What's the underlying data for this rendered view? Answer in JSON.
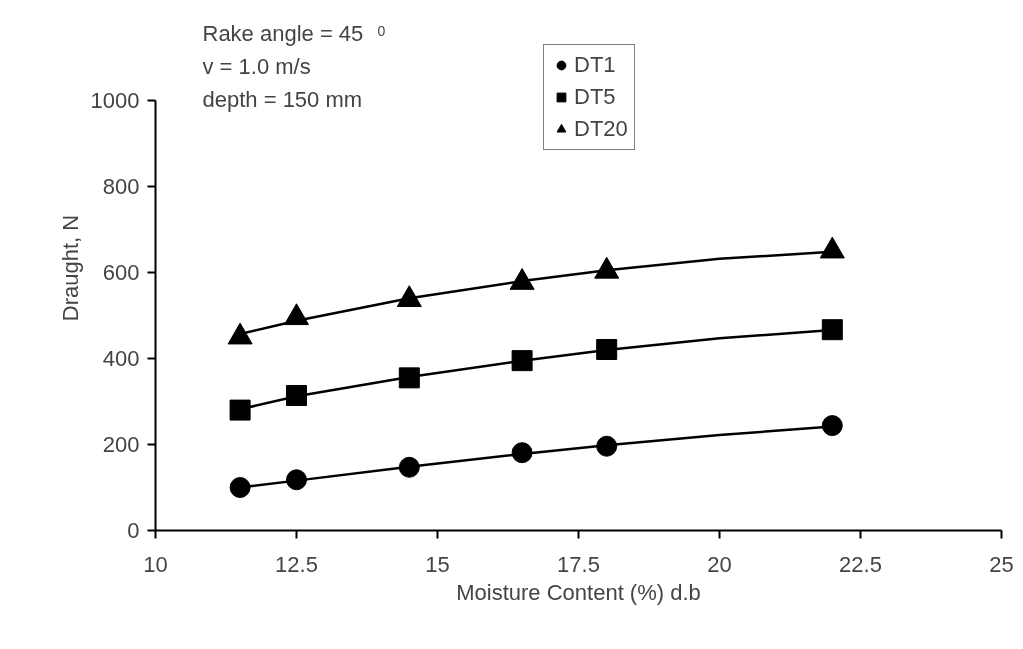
{
  "chart_data": {
    "type": "scatter",
    "xlabel": "Moisture Content (%) d.b",
    "ylabel": "Draught, N",
    "annotations": [
      "Rake angle = 45$^{0}$",
      "v = 1.0 m/s",
      "depth = 150 mm"
    ],
    "x": [
      11.5,
      12.5,
      14.5,
      16.5,
      18,
      22
    ],
    "xlim": [
      10,
      25
    ],
    "xticks": [
      10,
      12.5,
      15,
      17.5,
      20,
      22.5,
      25
    ],
    "ylim": [
      0,
      1000
    ],
    "yticks": [
      0,
      200,
      400,
      600,
      800,
      1000
    ],
    "grid": false,
    "legend": "top",
    "series": [
      {
        "name": "DT1",
        "color": "#000000",
        "marker": "circle",
        "values": [
          100,
          118,
          147,
          181,
          196,
          244
        ]
      },
      {
        "name": "DT5",
        "color": "#000000",
        "marker": "square",
        "values": [
          280,
          314,
          355,
          395,
          421,
          467
        ]
      },
      {
        "name": "DT20",
        "color": "#000000",
        "marker": "triangle",
        "values": [
          450,
          495,
          537,
          577,
          603,
          650
        ]
      },
      {
        "type": "line",
        "color": "#000000",
        "marker": "none",
        "x": [
          11.5,
          12.5,
          14.5,
          16.5,
          18,
          20,
          22
        ],
        "values": [
          100,
          116,
          148,
          178,
          198,
          222,
          242
        ]
      },
      {
        "type": "line",
        "color": "#000000",
        "marker": "none",
        "x": [
          11.5,
          12.5,
          14.5,
          16.5,
          18,
          20,
          22
        ],
        "values": [
          282,
          312,
          357,
          395,
          420,
          447,
          466
        ]
      },
      {
        "type": "line",
        "color": "#000000",
        "marker": "none",
        "x": [
          11.5,
          12.5,
          14.5,
          16.5,
          18,
          20,
          22
        ],
        "values": [
          457,
          488,
          540,
          580,
          605,
          632,
          648
        ]
      }
    ]
  }
}
